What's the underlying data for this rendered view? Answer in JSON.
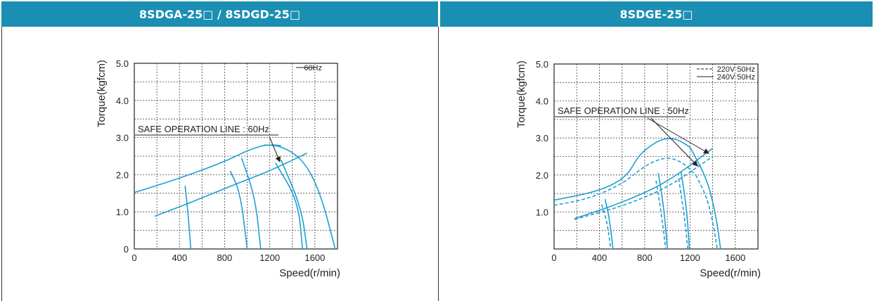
{
  "headers": {
    "left": "8SDGA-25□ / 8SDGD-25□",
    "right": "8SDGE-25□"
  },
  "chart_data": [
    {
      "type": "line",
      "xlabel": "Speed(r/min)",
      "ylabel": "Torque(kgfcm)",
      "xlim": [
        0,
        1800
      ],
      "ylim": [
        0,
        5.0
      ],
      "x_ticks": [
        "0",
        "400",
        "800",
        "1200",
        "1600"
      ],
      "y_ticks": [
        "0",
        "1.0",
        "2.0",
        "3.0",
        "4.0",
        "5.0"
      ],
      "grid": true,
      "legend_position": "top-right",
      "legend": [
        {
          "label": "60Hz",
          "style": "solid"
        }
      ],
      "annotation": "SAFE OPERATION LINE : 60Hz",
      "series": [
        {
          "style": "solid",
          "x": [
            0,
            400,
            800,
            1000,
            1150,
            1250,
            1300
          ],
          "y": [
            1.52,
            1.9,
            2.35,
            2.65,
            2.8,
            2.8,
            2.78
          ]
        },
        {
          "style": "solid",
          "x": [
            1150,
            1300,
            1500,
            1650,
            1780
          ],
          "y": [
            2.8,
            2.78,
            2.4,
            1.5,
            0
          ]
        },
        {
          "style": "solid",
          "x": [
            180,
            500,
            900,
            1200,
            1530
          ],
          "y": [
            0.88,
            1.25,
            1.75,
            2.1,
            2.58
          ]
        },
        {
          "style": "solid",
          "x": [
            450,
            480,
            500
          ],
          "y": [
            1.7,
            0.85,
            0
          ]
        },
        {
          "style": "solid",
          "x": [
            850,
            940,
            1000
          ],
          "y": [
            2.1,
            1.5,
            0
          ]
        },
        {
          "style": "solid",
          "x": [
            950,
            1070,
            1120
          ],
          "y": [
            2.45,
            1.4,
            0
          ]
        },
        {
          "style": "solid",
          "x": [
            1250,
            1450,
            1490
          ],
          "y": [
            2.32,
            1.3,
            0
          ]
        },
        {
          "style": "solid",
          "x": [
            1300,
            1480,
            1530
          ],
          "y": [
            2.4,
            1.1,
            0
          ]
        }
      ]
    },
    {
      "type": "line",
      "xlabel": "Speed(r/min)",
      "ylabel": "Torque(kgfcm)",
      "xlim": [
        0,
        1800
      ],
      "ylim": [
        0,
        5.0
      ],
      "x_ticks": [
        "0",
        "400",
        "800",
        "1200",
        "1600"
      ],
      "y_ticks": [
        "1.0",
        "2.0",
        "3.0",
        "4.0",
        "5.0"
      ],
      "grid": true,
      "legend_position": "top-right",
      "legend": [
        {
          "label": "220V 50Hz",
          "style": "dashed"
        },
        {
          "label": "240V 50Hz",
          "style": "solid"
        }
      ],
      "annotation": "SAFE OPERATION LINE : 50Hz",
      "series": [
        {
          "style": "solid",
          "x": [
            0,
            300,
            500,
            650,
            750,
            900,
            1000,
            1100,
            1200
          ],
          "y": [
            1.32,
            1.5,
            1.7,
            2.0,
            2.55,
            2.9,
            3.0,
            2.95,
            2.75
          ]
        },
        {
          "style": "solid",
          "x": [
            1200,
            1350,
            1430,
            1470
          ],
          "y": [
            2.75,
            1.9,
            0.9,
            0
          ]
        },
        {
          "style": "dashed",
          "x": [
            0,
            300,
            600,
            800,
            950,
            1050,
            1150,
            1250
          ],
          "y": [
            1.18,
            1.35,
            1.75,
            2.25,
            2.45,
            2.45,
            2.3,
            2.0
          ]
        },
        {
          "style": "dashed",
          "x": [
            1250,
            1350,
            1410,
            1440
          ],
          "y": [
            2.0,
            1.4,
            0.6,
            0
          ]
        },
        {
          "style": "solid",
          "x": [
            180,
            600,
            1000,
            1400
          ],
          "y": [
            0.82,
            1.25,
            1.8,
            2.72
          ]
        },
        {
          "style": "dashed",
          "x": [
            180,
            600,
            1000,
            1400
          ],
          "y": [
            0.8,
            1.15,
            1.65,
            2.5
          ]
        },
        {
          "style": "solid",
          "x": [
            450,
            490,
            520
          ],
          "y": [
            1.35,
            0.8,
            0
          ]
        },
        {
          "style": "dashed",
          "x": [
            420,
            470,
            500
          ],
          "y": [
            1.2,
            0.7,
            0
          ]
        },
        {
          "style": "solid",
          "x": [
            920,
            970,
            1000
          ],
          "y": [
            2.05,
            1.1,
            0
          ]
        },
        {
          "style": "dashed",
          "x": [
            900,
            950,
            985
          ],
          "y": [
            1.85,
            0.9,
            0
          ]
        },
        {
          "style": "solid",
          "x": [
            1120,
            1170,
            1195
          ],
          "y": [
            2.1,
            1.1,
            0
          ]
        },
        {
          "style": "dashed",
          "x": [
            1100,
            1150,
            1180
          ],
          "y": [
            1.9,
            0.9,
            0
          ]
        }
      ]
    }
  ]
}
